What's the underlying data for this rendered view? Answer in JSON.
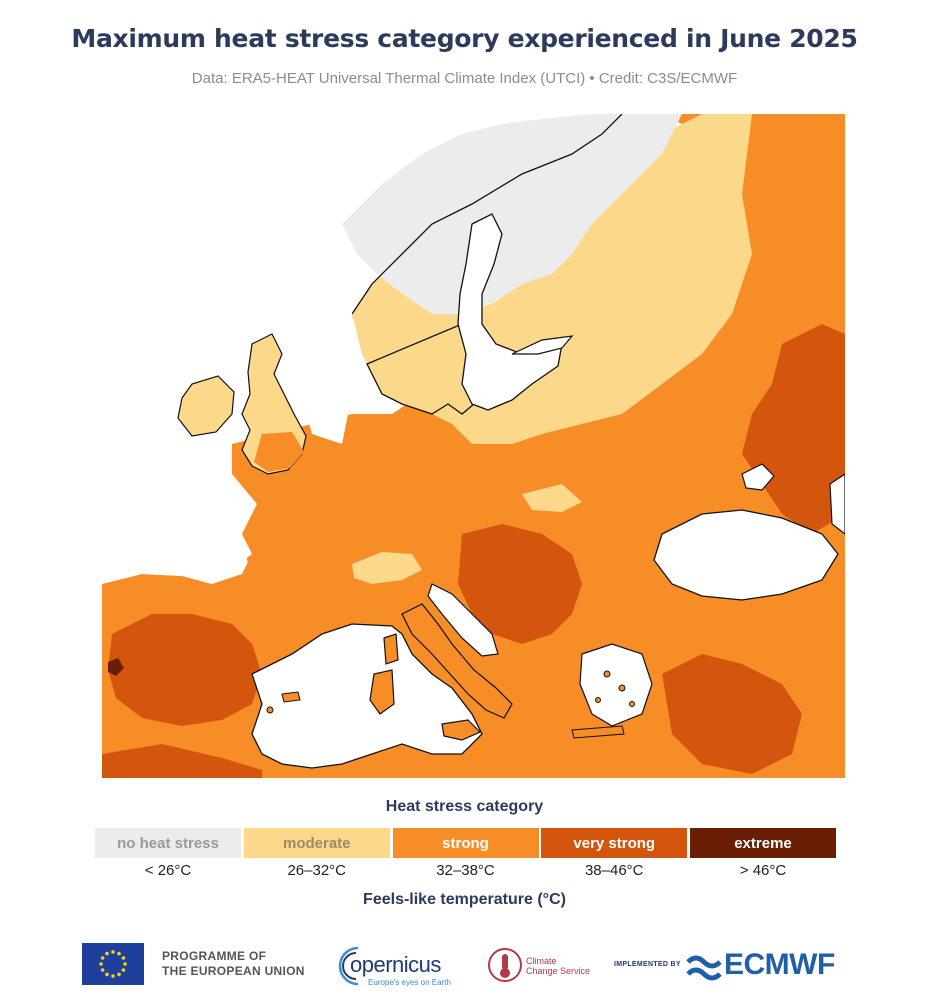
{
  "title": "Maximum heat stress category experienced in June 2025",
  "subtitle": "Data: ERA5-HEAT Universal Thermal Climate Index (UTCI) • Credit: C3S/ECMWF",
  "legend": {
    "title": "Heat stress category",
    "axis_label": "Feels-like temperature (°C)",
    "categories": [
      {
        "label": "no heat stress",
        "range": "< 26°C",
        "color": "#ececec"
      },
      {
        "label": "moderate",
        "range": "26–32°C",
        "color": "#fcd98a"
      },
      {
        "label": "strong",
        "range": "32–38°C",
        "color": "#f68d26"
      },
      {
        "label": "very strong",
        "range": "38–46°C",
        "color": "#d4560e"
      },
      {
        "label": "extreme",
        "range": "> 46°C",
        "color": "#6b1e06"
      }
    ]
  },
  "footer": {
    "eu_line1": "PROGRAMME OF",
    "eu_line2": "THE EUROPEAN UNION",
    "copernicus": "opernicus",
    "copernicus_tag": "Europe's eyes on Earth",
    "ccs_line1": "Climate",
    "ccs_line2": "Change Service",
    "implemented_by": "IMPLEMENTED BY",
    "ecmwf": "ECMWF"
  },
  "icons": [
    "eu-flag-icon",
    "copernicus-logo-icon",
    "climate-change-service-logo-icon",
    "ecmwf-logo-icon"
  ]
}
